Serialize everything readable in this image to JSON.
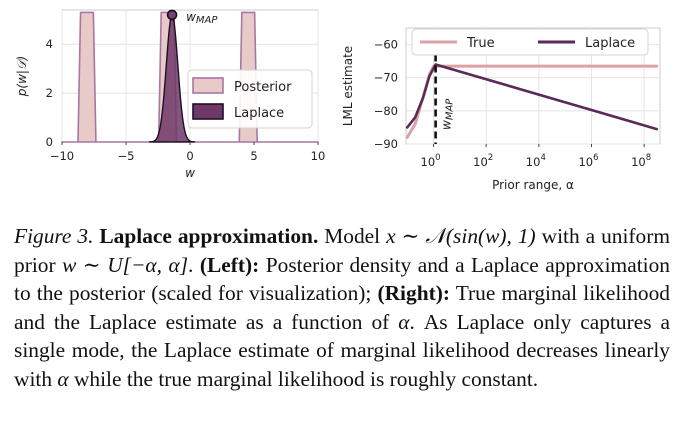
{
  "chart_data": [
    {
      "type": "area",
      "ylabel": "p(w|𝒟)",
      "xlabel": "w",
      "xlim": [
        -10,
        10
      ],
      "ylim": [
        0,
        5.4
      ],
      "xticks": [
        -10,
        -5,
        0,
        5,
        10
      ],
      "xtick_labels": [
        "−10",
        "−5",
        "0",
        "5",
        "10"
      ],
      "yticks": [
        0,
        2,
        4
      ],
      "ytick_labels": [
        "0",
        "2",
        "4"
      ],
      "grid": true,
      "legend_position": "right",
      "series": [
        {
          "name": "Posterior",
          "color": "#e8cbc9",
          "edge_color": "#a876a3",
          "values": [
            {
              "x": -10.0,
              "y": 0
            },
            {
              "x": -8.75,
              "y": 0
            },
            {
              "x": -8.55,
              "y": 5.3
            },
            {
              "x": -7.55,
              "y": 5.3
            },
            {
              "x": -7.35,
              "y": 0
            },
            {
              "x": -2.45,
              "y": 0
            },
            {
              "x": -2.25,
              "y": 5.3
            },
            {
              "x": -1.25,
              "y": 5.3
            },
            {
              "x": -1.05,
              "y": 0
            },
            {
              "x": 3.85,
              "y": 0
            },
            {
              "x": 4.05,
              "y": 5.3
            },
            {
              "x": 5.05,
              "y": 5.3
            },
            {
              "x": 5.25,
              "y": 0
            },
            {
              "x": 10.0,
              "y": 0
            }
          ]
        },
        {
          "name": "Laplace",
          "color": "#6e3868",
          "edge_color": "#1d1021",
          "mean": -1.4,
          "peak": 5.2,
          "sd": 0.45
        }
      ],
      "annotations": [
        {
          "text": "w",
          "subscript": "MAP",
          "x": -1.4,
          "y": 5.2
        }
      ]
    },
    {
      "type": "line",
      "ylabel": "LML estimate",
      "xlabel": "Prior range, α",
      "xscale": "log",
      "xlim": [
        0.09,
        400000000
      ],
      "ylim": [
        -90,
        -55
      ],
      "xticks": [
        1,
        100,
        10000,
        1000000,
        100000000
      ],
      "xtick_labels": [
        {
          "base": "10",
          "exp": "0"
        },
        {
          "base": "10",
          "exp": "2"
        },
        {
          "base": "10",
          "exp": "4"
        },
        {
          "base": "10",
          "exp": "6"
        },
        {
          "base": "10",
          "exp": "8"
        }
      ],
      "yticks": [
        -60,
        -70,
        -80,
        -90
      ],
      "ytick_labels": [
        "−60",
        "−70",
        "−80",
        "−90"
      ],
      "grid": true,
      "legend_position": "top",
      "series": [
        {
          "name": "True",
          "color": "#dba2a4",
          "points": [
            {
              "x": 0.1,
              "y": -88
            },
            {
              "x": 0.2,
              "y": -84
            },
            {
              "x": 0.4,
              "y": -76
            },
            {
              "x": 0.7,
              "y": -69
            },
            {
              "x": 1.0,
              "y": -66.5
            },
            {
              "x": 2.0,
              "y": -66.5
            },
            {
              "x": 300000000,
              "y": -66.5
            }
          ]
        },
        {
          "name": "Laplace",
          "color": "#5a2a59",
          "points": [
            {
              "x": 0.1,
              "y": -85
            },
            {
              "x": 0.2,
              "y": -82
            },
            {
              "x": 0.4,
              "y": -76
            },
            {
              "x": 0.7,
              "y": -69.5
            },
            {
              "x": 1.2,
              "y": -66
            },
            {
              "x": 300000000,
              "y": -85.5
            }
          ]
        }
      ],
      "annotations": [
        {
          "text": "w",
          "subscript": "MAP",
          "x": 1.2,
          "rotated": true
        }
      ]
    }
  ],
  "caption": {
    "figure_label": "Figure 3.",
    "title": "Laplace approximation.",
    "p1": " Model ",
    "m1": "x ∼ 𝒩(sin(w), 1)",
    "p2": " with a uniform prior ",
    "m2": "w ∼ U[−α, α]",
    "p3": ". ",
    "left_label": "(Left):",
    "p4": " Posterior density and a Laplace approximation to the posterior (scaled for visualization); ",
    "right_label": "(Right):",
    "p5": " True marginal likelihood and the Laplace estimate as a function of ",
    "m3": "α",
    "p6": ". As Laplace only captures a single mode, the Laplace estimate of marginal likelihood decreases linearly with ",
    "m4": "α",
    "p7": " while the true marginal likelihood is roughly constant."
  }
}
